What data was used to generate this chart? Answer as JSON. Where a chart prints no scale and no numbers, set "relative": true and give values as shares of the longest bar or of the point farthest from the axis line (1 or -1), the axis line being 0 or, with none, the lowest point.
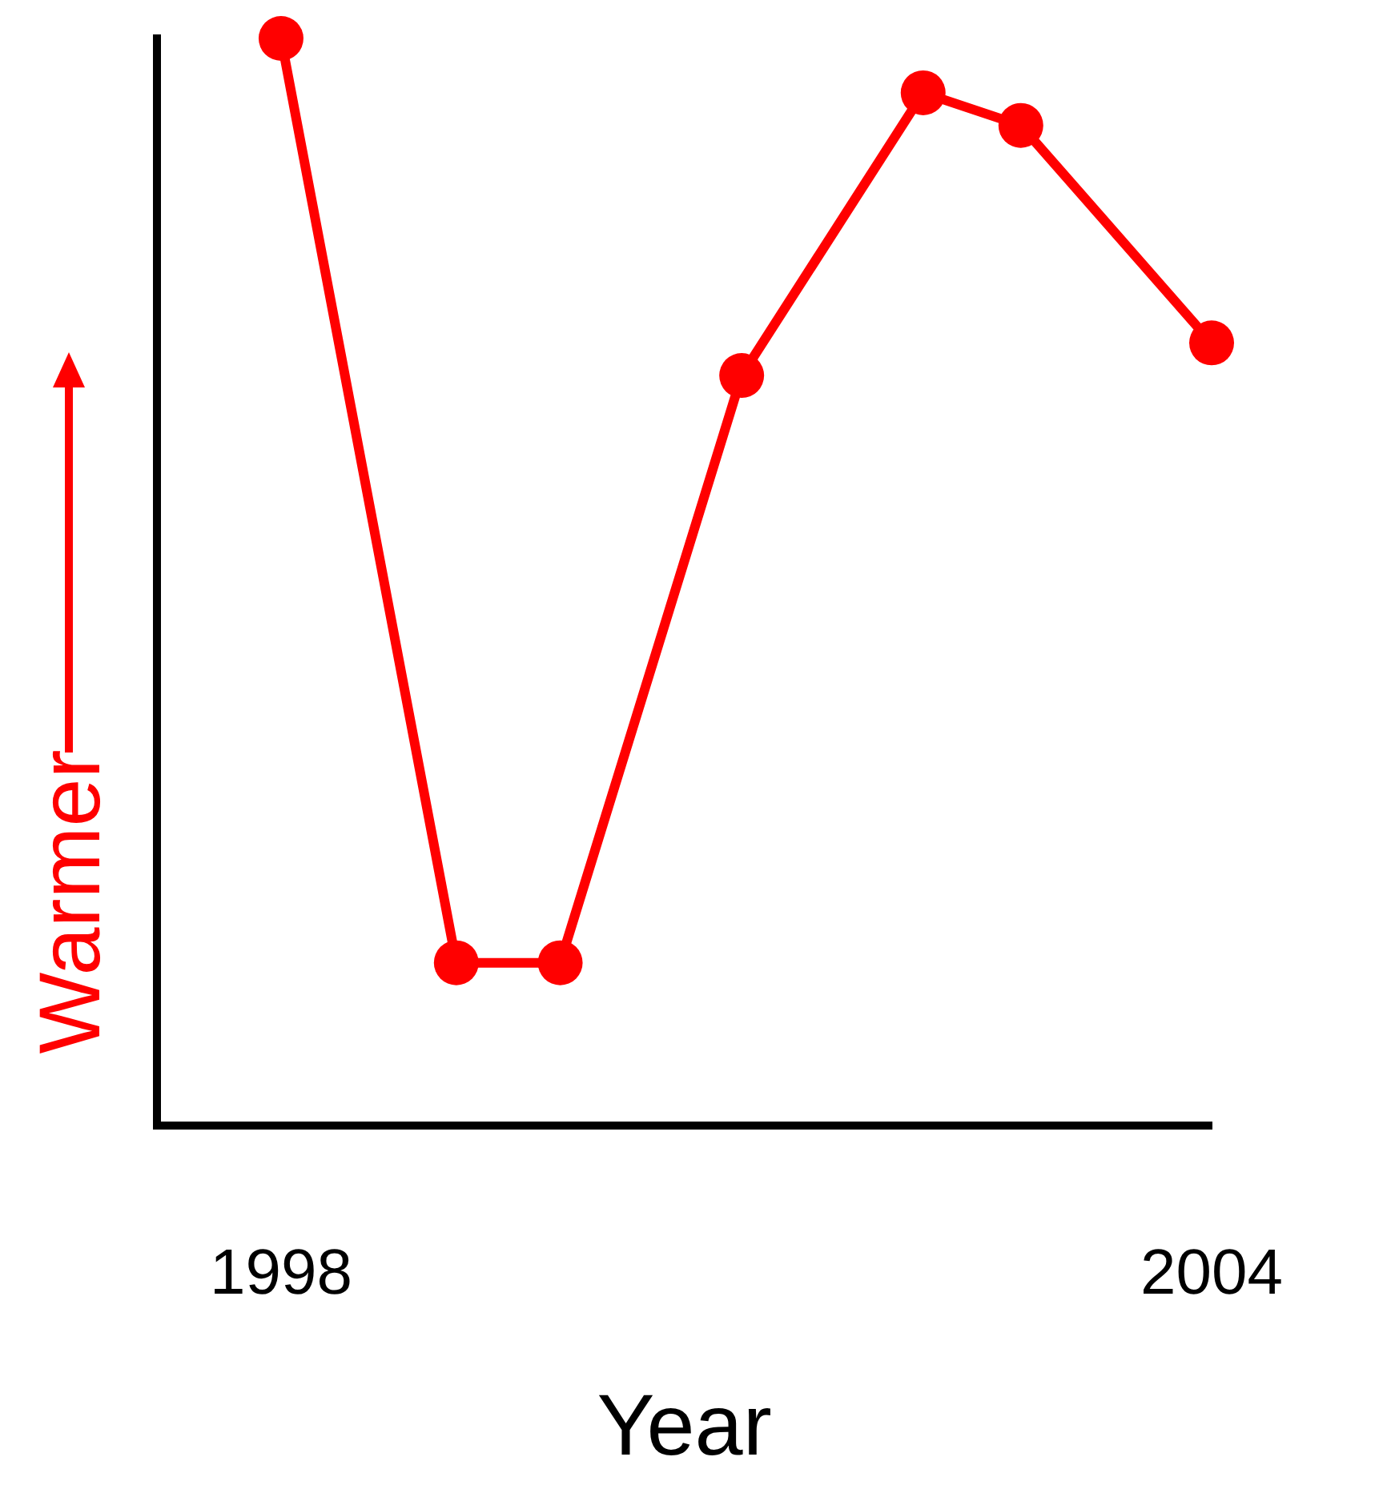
{
  "chart_data": {
    "type": "line",
    "relative": true,
    "xlabel": "Year",
    "ylabel": "Warmer",
    "x": [
      1998,
      1999.13,
      1999.8,
      2000.97,
      2002.14,
      2002.77,
      2004
    ],
    "xlim": [
      1997.2,
      2004
    ],
    "xticks": [
      1998,
      2004
    ],
    "series": [
      {
        "color": "#ff0000",
        "values": [
          1,
          0.15,
          0.15,
          0.69,
          0.95,
          0.92,
          0.72
        ]
      }
    ],
    "marker": "circle",
    "grid": false,
    "legend": false
  }
}
